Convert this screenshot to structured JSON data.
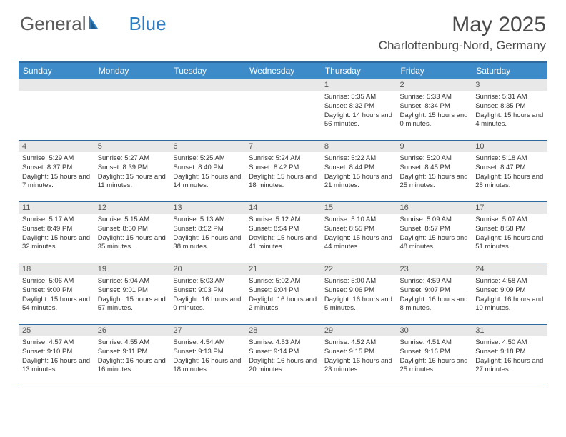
{
  "logo": {
    "part1": "General",
    "part2": "Blue"
  },
  "title": "May 2025",
  "location": "Charlottenburg-Nord, Germany",
  "colors": {
    "header_bg": "#3d8bc8",
    "header_border": "#2e6a9e",
    "daynum_bg": "#e8e8e8",
    "text": "#333333",
    "logo_gray": "#5a5a5a",
    "logo_blue": "#2d7dc0"
  },
  "day_headers": [
    "Sunday",
    "Monday",
    "Tuesday",
    "Wednesday",
    "Thursday",
    "Friday",
    "Saturday"
  ],
  "weeks": [
    [
      null,
      null,
      null,
      null,
      {
        "n": "1",
        "sr": "5:35 AM",
        "ss": "8:32 PM",
        "dl": "14 hours and 56 minutes."
      },
      {
        "n": "2",
        "sr": "5:33 AM",
        "ss": "8:34 PM",
        "dl": "15 hours and 0 minutes."
      },
      {
        "n": "3",
        "sr": "5:31 AM",
        "ss": "8:35 PM",
        "dl": "15 hours and 4 minutes."
      }
    ],
    [
      {
        "n": "4",
        "sr": "5:29 AM",
        "ss": "8:37 PM",
        "dl": "15 hours and 7 minutes."
      },
      {
        "n": "5",
        "sr": "5:27 AM",
        "ss": "8:39 PM",
        "dl": "15 hours and 11 minutes."
      },
      {
        "n": "6",
        "sr": "5:25 AM",
        "ss": "8:40 PM",
        "dl": "15 hours and 14 minutes."
      },
      {
        "n": "7",
        "sr": "5:24 AM",
        "ss": "8:42 PM",
        "dl": "15 hours and 18 minutes."
      },
      {
        "n": "8",
        "sr": "5:22 AM",
        "ss": "8:44 PM",
        "dl": "15 hours and 21 minutes."
      },
      {
        "n": "9",
        "sr": "5:20 AM",
        "ss": "8:45 PM",
        "dl": "15 hours and 25 minutes."
      },
      {
        "n": "10",
        "sr": "5:18 AM",
        "ss": "8:47 PM",
        "dl": "15 hours and 28 minutes."
      }
    ],
    [
      {
        "n": "11",
        "sr": "5:17 AM",
        "ss": "8:49 PM",
        "dl": "15 hours and 32 minutes."
      },
      {
        "n": "12",
        "sr": "5:15 AM",
        "ss": "8:50 PM",
        "dl": "15 hours and 35 minutes."
      },
      {
        "n": "13",
        "sr": "5:13 AM",
        "ss": "8:52 PM",
        "dl": "15 hours and 38 minutes."
      },
      {
        "n": "14",
        "sr": "5:12 AM",
        "ss": "8:54 PM",
        "dl": "15 hours and 41 minutes."
      },
      {
        "n": "15",
        "sr": "5:10 AM",
        "ss": "8:55 PM",
        "dl": "15 hours and 44 minutes."
      },
      {
        "n": "16",
        "sr": "5:09 AM",
        "ss": "8:57 PM",
        "dl": "15 hours and 48 minutes."
      },
      {
        "n": "17",
        "sr": "5:07 AM",
        "ss": "8:58 PM",
        "dl": "15 hours and 51 minutes."
      }
    ],
    [
      {
        "n": "18",
        "sr": "5:06 AM",
        "ss": "9:00 PM",
        "dl": "15 hours and 54 minutes."
      },
      {
        "n": "19",
        "sr": "5:04 AM",
        "ss": "9:01 PM",
        "dl": "15 hours and 57 minutes."
      },
      {
        "n": "20",
        "sr": "5:03 AM",
        "ss": "9:03 PM",
        "dl": "16 hours and 0 minutes."
      },
      {
        "n": "21",
        "sr": "5:02 AM",
        "ss": "9:04 PM",
        "dl": "16 hours and 2 minutes."
      },
      {
        "n": "22",
        "sr": "5:00 AM",
        "ss": "9:06 PM",
        "dl": "16 hours and 5 minutes."
      },
      {
        "n": "23",
        "sr": "4:59 AM",
        "ss": "9:07 PM",
        "dl": "16 hours and 8 minutes."
      },
      {
        "n": "24",
        "sr": "4:58 AM",
        "ss": "9:09 PM",
        "dl": "16 hours and 10 minutes."
      }
    ],
    [
      {
        "n": "25",
        "sr": "4:57 AM",
        "ss": "9:10 PM",
        "dl": "16 hours and 13 minutes."
      },
      {
        "n": "26",
        "sr": "4:55 AM",
        "ss": "9:11 PM",
        "dl": "16 hours and 16 minutes."
      },
      {
        "n": "27",
        "sr": "4:54 AM",
        "ss": "9:13 PM",
        "dl": "16 hours and 18 minutes."
      },
      {
        "n": "28",
        "sr": "4:53 AM",
        "ss": "9:14 PM",
        "dl": "16 hours and 20 minutes."
      },
      {
        "n": "29",
        "sr": "4:52 AM",
        "ss": "9:15 PM",
        "dl": "16 hours and 23 minutes."
      },
      {
        "n": "30",
        "sr": "4:51 AM",
        "ss": "9:16 PM",
        "dl": "16 hours and 25 minutes."
      },
      {
        "n": "31",
        "sr": "4:50 AM",
        "ss": "9:18 PM",
        "dl": "16 hours and 27 minutes."
      }
    ]
  ],
  "labels": {
    "sunrise": "Sunrise: ",
    "sunset": "Sunset: ",
    "daylight": "Daylight: "
  }
}
